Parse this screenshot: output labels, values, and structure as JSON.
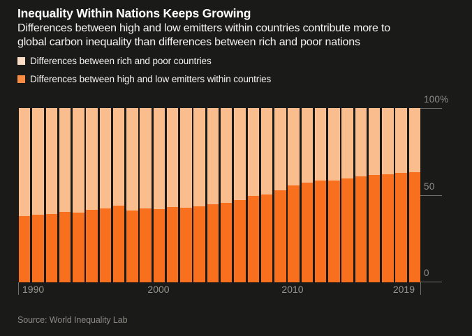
{
  "header": {
    "title": "Inequality Within Nations Keeps Growing",
    "subtitle_line1": "Differences between high and low emitters within countries contribute more to",
    "subtitle_line2": "global carbon inequality than differences between rich and poor nations"
  },
  "legend": {
    "items": [
      {
        "label": "Differences between rich and poor countries",
        "swatch_color": "#fbdcc6"
      },
      {
        "label": "Differences between high and low emitters within countries",
        "swatch_color": "#f98b42"
      }
    ]
  },
  "axes": {
    "y_ticks": {
      "top": "100%",
      "mid": "50",
      "bottom": "0"
    },
    "x_ticks": {
      "t0": "1990",
      "t1": "2000",
      "t2": "2010",
      "t3": "2019"
    }
  },
  "source": "Source: World Inequality Lab",
  "colors": {
    "background": "#1a1a19",
    "bar_within": "#f8701e",
    "bar_between": "#f9bd8e",
    "title_text": "#ffffff",
    "body_text": "#f5f3ef",
    "axis_text": "#8f8e8a",
    "tick_line": "#6f6e6b"
  },
  "chart_data": {
    "type": "bar",
    "stacked": true,
    "title": "Inequality Within Nations Keeps Growing",
    "xlabel": "",
    "ylabel": "",
    "unit": "%",
    "ylim": [
      0,
      100
    ],
    "grid": false,
    "legend_position": "top-left",
    "x": [
      1990,
      1991,
      1992,
      1993,
      1994,
      1995,
      1996,
      1997,
      1998,
      1999,
      2000,
      2001,
      2002,
      2003,
      2004,
      2005,
      2006,
      2007,
      2008,
      2009,
      2010,
      2011,
      2012,
      2013,
      2014,
      2015,
      2016,
      2017,
      2018,
      2019
    ],
    "series": [
      {
        "name": "Differences between high and low emitters within countries",
        "color": "#f8701e",
        "values": [
          38.0,
          39.0,
          39.2,
          40.3,
          40.1,
          41.6,
          42.3,
          44.0,
          41.4,
          42.4,
          42.2,
          43.2,
          43.0,
          43.5,
          44.7,
          45.6,
          47.3,
          49.5,
          50.3,
          53.0,
          55.6,
          57.3,
          58.3,
          58.4,
          59.6,
          60.9,
          61.6,
          62.0,
          62.7,
          63.3
        ]
      },
      {
        "name": "Differences between rich and poor countries",
        "color": "#f9bd8e",
        "values": [
          62.0,
          61.0,
          60.8,
          59.7,
          59.9,
          58.4,
          57.7,
          56.0,
          58.6,
          57.6,
          57.8,
          56.8,
          57.0,
          56.5,
          55.3,
          54.4,
          52.7,
          50.5,
          49.7,
          47.0,
          44.4,
          42.7,
          41.7,
          41.6,
          40.4,
          39.1,
          38.4,
          38.0,
          37.3,
          36.7
        ]
      }
    ]
  }
}
